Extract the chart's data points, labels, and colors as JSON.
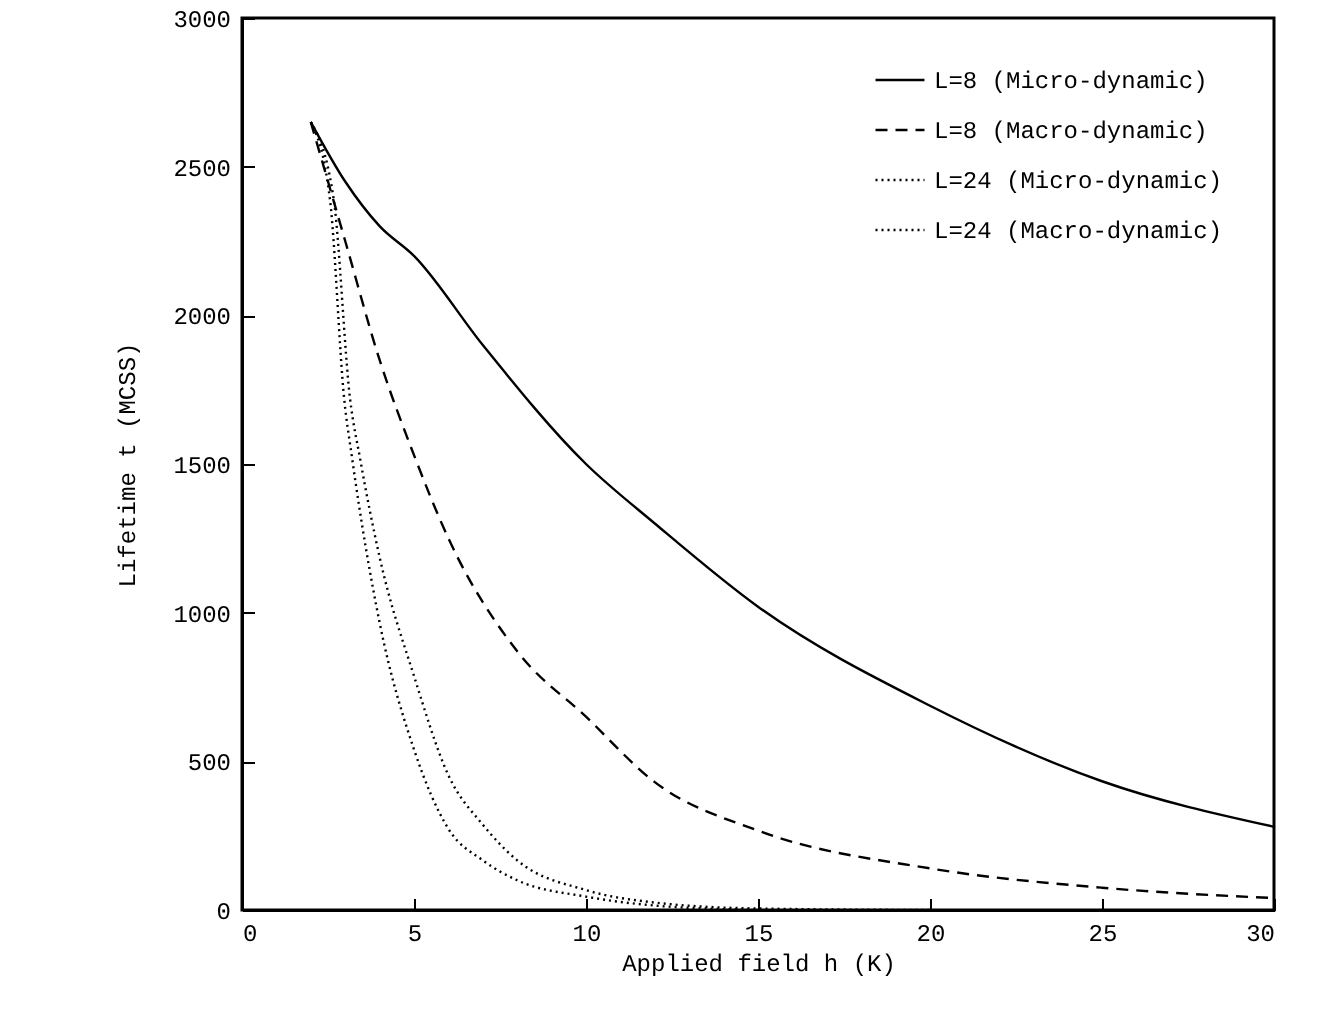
{
  "chart_data": {
    "type": "line",
    "xlabel": "Applied field  h (K)",
    "ylabel": "Lifetime  t (MCSS)",
    "xlim": [
      0,
      30
    ],
    "ylim": [
      0,
      3000
    ],
    "xticks": [
      0,
      5,
      10,
      15,
      20,
      25,
      30
    ],
    "yticks": [
      0,
      500,
      1000,
      1500,
      2000,
      2500,
      3000
    ],
    "legend": "top right",
    "grid": false,
    "series": [
      {
        "name": "L=8  (Micro-dynamic)",
        "color": "#000000",
        "line_style": "solid",
        "x": [
          2,
          3,
          4,
          5,
          7,
          10,
          12,
          15,
          20,
          25,
          30
        ],
        "values": [
          2650,
          2450,
          2300,
          2200,
          1900,
          1500,
          1300,
          1020,
          687,
          433,
          280
        ]
      },
      {
        "name": "L=8  (Macro-dynamic)",
        "color": "#000000",
        "line_style": "dashed",
        "x": [
          2,
          3,
          4,
          5,
          6,
          8,
          10,
          12,
          15,
          20,
          25,
          30
        ],
        "values": [
          2650,
          2250,
          1850,
          1530,
          1250,
          870,
          650,
          430,
          267,
          140,
          75,
          40
        ]
      },
      {
        "name": "L=24  (Micro-dynamic)",
        "color": "#000000",
        "line_style": "dotted",
        "x": [
          2,
          2.67,
          3.14,
          3.43,
          4,
          5,
          6,
          7,
          8,
          10,
          12,
          15,
          20
        ],
        "values": [
          2650,
          2387,
          1720,
          1520,
          1187,
          787,
          453,
          287,
          167,
          67,
          25,
          5,
          0
        ]
      },
      {
        "name": "L=24  (Macro-dynamic)",
        "color": "#000000",
        "line_style": "dotted",
        "x": [
          2,
          2.56,
          2.97,
          3.2,
          4,
          5,
          6,
          7,
          8,
          10,
          12,
          15
        ],
        "values": [
          2650,
          2387,
          1720,
          1520,
          967,
          540,
          273,
          167,
          100,
          45,
          15,
          0
        ]
      }
    ]
  }
}
